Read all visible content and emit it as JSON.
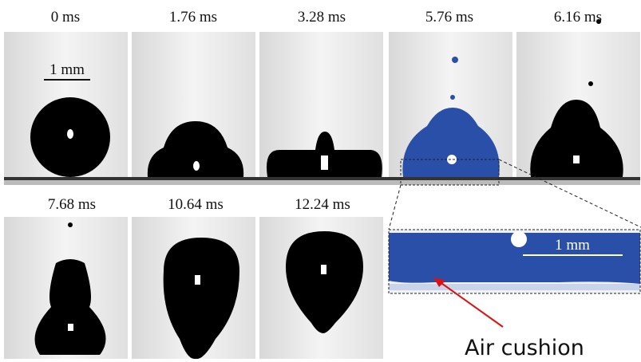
{
  "frames": [
    {
      "label": "0 ms"
    },
    {
      "label": "1.76 ms"
    },
    {
      "label": "3.28 ms"
    },
    {
      "label": "5.76 ms"
    },
    {
      "label": "6.16 ms"
    },
    {
      "label": "7.68 ms"
    },
    {
      "label": "10.64 ms"
    },
    {
      "label": "12.24 ms"
    }
  ],
  "scale_bar": "1 mm",
  "inset": {
    "scale_bar": "1 mm"
  },
  "annotation": "Air cushion"
}
